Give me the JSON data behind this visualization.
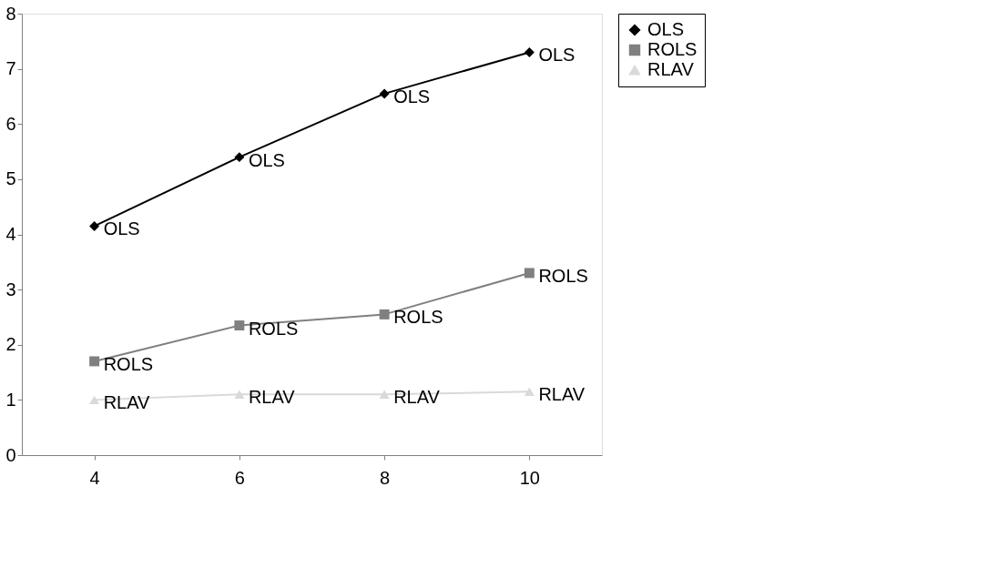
{
  "chart_data": {
    "type": "line",
    "categories": [
      "4",
      "6",
      "8",
      "10"
    ],
    "series": [
      {
        "name": "OLS",
        "color": "#000000",
        "marker": "diamond",
        "values": [
          4.15,
          5.4,
          6.55,
          7.3
        ]
      },
      {
        "name": "ROLS",
        "color": "#808080",
        "marker": "square",
        "values": [
          1.7,
          2.35,
          2.55,
          3.3
        ]
      },
      {
        "name": "RLAV",
        "color": "#d9d9d9",
        "marker": "triangle",
        "values": [
          1.0,
          1.1,
          1.1,
          1.15
        ]
      }
    ],
    "ylim": [
      0,
      8
    ],
    "yticks": [
      0,
      1,
      2,
      3,
      4,
      5,
      6,
      7,
      8
    ],
    "grid": false,
    "legend": "right",
    "annotations": [
      {
        "text": "OLS",
        "x": "4",
        "y": 4.15
      },
      {
        "text": "OLS",
        "x": "6",
        "y": 5.4
      },
      {
        "text": "OLS",
        "x": "8",
        "y": 6.55
      },
      {
        "text": "OLS",
        "x": "10",
        "y": 7.3
      },
      {
        "text": "ROLS",
        "x": "4",
        "y": 1.7
      },
      {
        "text": "ROLS",
        "x": "6",
        "y": 2.35
      },
      {
        "text": "ROLS",
        "x": "8",
        "y": 2.55
      },
      {
        "text": "ROLS",
        "x": "10",
        "y": 3.3
      },
      {
        "text": "RLAV",
        "x": "4",
        "y": 1.0
      },
      {
        "text": "RLAV",
        "x": "6",
        "y": 1.1
      },
      {
        "text": "RLAV",
        "x": "8",
        "y": 1.1
      },
      {
        "text": "RLAV",
        "x": "10",
        "y": 1.15
      }
    ]
  }
}
